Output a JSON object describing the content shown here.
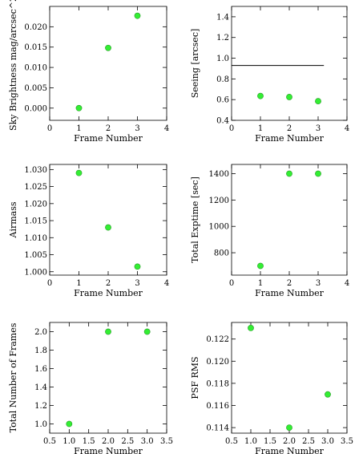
{
  "chart_data": [
    {
      "type": "scatter",
      "xlabel": "Frame Number",
      "ylabel": "Sky Brightness mag/arcsec^2",
      "xlim": [
        0,
        4
      ],
      "ylim": [
        -0.003,
        0.025
      ],
      "xticks": [
        0,
        1,
        2,
        3,
        4
      ],
      "yticks": [
        0.0,
        0.005,
        0.01,
        0.015,
        0.02
      ],
      "ytick_labels": [
        "0.000",
        "0.005",
        "0.010",
        "0.015",
        "0.020"
      ],
      "x": [
        1,
        2,
        3
      ],
      "y": [
        0.0,
        0.0148,
        0.0227
      ],
      "color": "#33ee33"
    },
    {
      "type": "scatter",
      "xlabel": "Frame Number",
      "ylabel": "Seeing [arcsec]",
      "xlim": [
        0,
        4
      ],
      "ylim": [
        0.4,
        1.5
      ],
      "xticks": [
        0,
        1,
        2,
        3,
        4
      ],
      "yticks": [
        0.4,
        0.6,
        0.8,
        1.0,
        1.2,
        1.4
      ],
      "ytick_labels": [
        "0.4",
        "0.6",
        "0.8",
        "1.0",
        "1.2",
        "1.4"
      ],
      "x": [
        1,
        2,
        3
      ],
      "y": [
        0.635,
        0.625,
        0.585
      ],
      "hline": {
        "y": 0.93,
        "x_range": [
          0,
          3.2
        ]
      },
      "color": "#33ee33"
    },
    {
      "type": "scatter",
      "xlabel": "Frame Number",
      "ylabel": "Airmass",
      "xlim": [
        0,
        4
      ],
      "ylim": [
        0.999,
        1.0315
      ],
      "xticks": [
        0,
        1,
        2,
        3,
        4
      ],
      "yticks": [
        1.0,
        1.005,
        1.01,
        1.015,
        1.02,
        1.025,
        1.03
      ],
      "ytick_labels": [
        "1.000",
        "1.005",
        "1.010",
        "1.015",
        "1.020",
        "1.025",
        "1.030"
      ],
      "x": [
        1,
        2,
        3
      ],
      "y": [
        1.029,
        1.013,
        1.0015
      ],
      "color": "#33ee33"
    },
    {
      "type": "scatter",
      "xlabel": "Frame Number",
      "ylabel": "Total Exptime [sec]",
      "xlim": [
        0,
        4
      ],
      "ylim": [
        630,
        1470
      ],
      "xticks": [
        0,
        1,
        2,
        3,
        4
      ],
      "yticks": [
        800,
        1000,
        1200,
        1400
      ],
      "ytick_labels": [
        "800",
        "1000",
        "1200",
        "1400"
      ],
      "x": [
        1,
        2,
        3
      ],
      "y": [
        700,
        1400,
        1400
      ],
      "color": "#33ee33"
    },
    {
      "type": "scatter",
      "xlabel": "Frame Number",
      "ylabel": "Total Number of Frames",
      "xlim": [
        0.5,
        3.5
      ],
      "ylim": [
        0.9,
        2.1
      ],
      "xticks": [
        0.5,
        1.0,
        1.5,
        2.0,
        2.5,
        3.0,
        3.5
      ],
      "yticks": [
        1.0,
        1.2,
        1.4,
        1.6,
        1.8,
        2.0
      ],
      "xtick_labels": [
        "0.5",
        "1.0",
        "1.5",
        "2.0",
        "2.5",
        "3.0",
        "3.5"
      ],
      "ytick_labels": [
        "1.0",
        "1.2",
        "1.4",
        "1.6",
        "1.8",
        "2.0"
      ],
      "x": [
        1,
        2,
        3
      ],
      "y": [
        1.0,
        2.0,
        2.0
      ],
      "color": "#33ee33"
    },
    {
      "type": "scatter",
      "xlabel": "Frame Number",
      "ylabel": "PSF RMS",
      "xlim": [
        0.5,
        3.5
      ],
      "ylim": [
        0.1135,
        0.1235
      ],
      "xticks": [
        0.5,
        1.0,
        1.5,
        2.0,
        2.5,
        3.0,
        3.5
      ],
      "yticks": [
        0.114,
        0.116,
        0.118,
        0.12,
        0.122
      ],
      "xtick_labels": [
        "0.5",
        "1.0",
        "1.5",
        "2.0",
        "2.5",
        "3.0",
        "3.5"
      ],
      "ytick_labels": [
        "0.114",
        "0.116",
        "0.118",
        "0.120",
        "0.122"
      ],
      "x": [
        1,
        2,
        3
      ],
      "y": [
        0.123,
        0.114,
        0.117
      ],
      "color": "#33ee33"
    }
  ]
}
